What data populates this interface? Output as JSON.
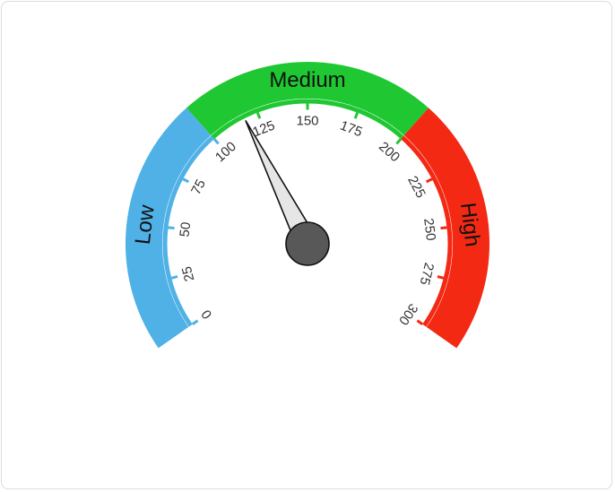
{
  "chart_data": {
    "type": "gauge",
    "min": 0,
    "max": 300,
    "value": 118,
    "major_tick_step": 25,
    "tick_labels": [
      "0",
      "25",
      "50",
      "75",
      "100",
      "125",
      "150",
      "175",
      "200",
      "225",
      "250",
      "275",
      "300"
    ],
    "bands": [
      {
        "label": "Low",
        "from": 0,
        "to": 100,
        "color": "#4fb1e6"
      },
      {
        "label": "Medium",
        "from": 100,
        "to": 200,
        "color": "#1fc832"
      },
      {
        "label": "High",
        "from": 200,
        "to": 300,
        "color": "#f42914"
      }
    ],
    "needle_color": "#e6e6e6",
    "hub_color": "#585858"
  }
}
